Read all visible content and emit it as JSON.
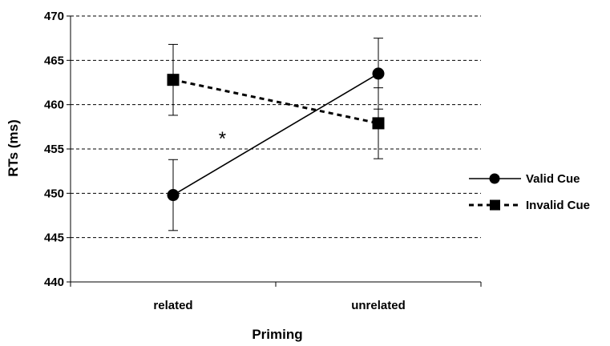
{
  "chart_data": {
    "type": "line",
    "title": "",
    "xlabel": "Priming",
    "ylabel": "RTs (ms)",
    "categories": [
      "related",
      "unrelated"
    ],
    "ylim": [
      440,
      470
    ],
    "yticks": [
      440,
      445,
      450,
      455,
      460,
      465,
      470
    ],
    "grid": true,
    "legend_position": "right",
    "series": [
      {
        "name": "Valid Cue",
        "values": [
          449.8,
          463.5
        ],
        "error": [
          4.0,
          4.0
        ],
        "line_style": "solid",
        "marker": "circle",
        "color": "#000000"
      },
      {
        "name": "Invalid Cue",
        "values": [
          462.8,
          457.9
        ],
        "error": [
          4.0,
          4.0
        ],
        "line_style": "dashed",
        "marker": "square",
        "color": "#000000"
      }
    ],
    "annotations": [
      {
        "text": "*",
        "x": 0.37,
        "y": 456.7
      }
    ]
  }
}
